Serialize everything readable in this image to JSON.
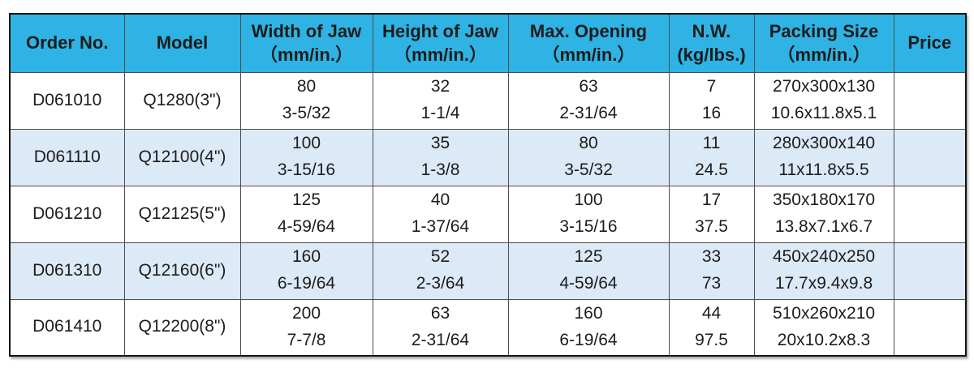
{
  "table": {
    "colors": {
      "header_bg": "#2FB3E4",
      "row_bg": "#FFFFFF",
      "row_alt_bg": "#DCE9F6",
      "border": "#141414",
      "grid": "#4D4D4D"
    },
    "columns": [
      {
        "label": "Order No.",
        "unit": ""
      },
      {
        "label": "Model",
        "unit": ""
      },
      {
        "label": "Width of Jaw",
        "unit": "（mm/in.）"
      },
      {
        "label": "Height of Jaw",
        "unit": "（mm/in.）"
      },
      {
        "label": "Max. Opening",
        "unit": "（mm/in.）"
      },
      {
        "label": "N.W.",
        "unit": "(kg/lbs.)"
      },
      {
        "label": "Packing Size",
        "unit": "（mm/in.）"
      },
      {
        "label": "Price",
        "unit": ""
      }
    ],
    "rows": [
      {
        "order_no": "D061010",
        "model": "Q1280(3\")",
        "width_mm": "80",
        "width_in": "3-5/32",
        "height_mm": "32",
        "height_in": "1-1/4",
        "opening_mm": "63",
        "opening_in": "2-31/64",
        "nw_kg": "7",
        "nw_lbs": "16",
        "packing_mm": "270x300x130",
        "packing_in": "10.6x11.8x5.1",
        "price": ""
      },
      {
        "order_no": "D061110",
        "model": "Q12100(4\")",
        "width_mm": "100",
        "width_in": "3-15/16",
        "height_mm": "35",
        "height_in": "1-3/8",
        "opening_mm": "80",
        "opening_in": "3-5/32",
        "nw_kg": "11",
        "nw_lbs": "24.5",
        "packing_mm": "280x300x140",
        "packing_in": "11x11.8x5.5",
        "price": ""
      },
      {
        "order_no": "D061210",
        "model": "Q12125(5\")",
        "width_mm": "125",
        "width_in": "4-59/64",
        "height_mm": "40",
        "height_in": "1-37/64",
        "opening_mm": "100",
        "opening_in": "3-15/16",
        "nw_kg": "17",
        "nw_lbs": "37.5",
        "packing_mm": "350x180x170",
        "packing_in": "13.8x7.1x6.7",
        "price": ""
      },
      {
        "order_no": "D061310",
        "model": "Q12160(6\")",
        "width_mm": "160",
        "width_in": "6-19/64",
        "height_mm": "52",
        "height_in": "2-3/64",
        "opening_mm": "125",
        "opening_in": "4-59/64",
        "nw_kg": "33",
        "nw_lbs": "73",
        "packing_mm": "450x240x250",
        "packing_in": "17.7x9.4x9.8",
        "price": ""
      },
      {
        "order_no": "D061410",
        "model": "Q12200(8\")",
        "width_mm": "200",
        "width_in": "7-7/8",
        "height_mm": "63",
        "height_in": "2-31/64",
        "opening_mm": "160",
        "opening_in": "6-19/64",
        "nw_kg": "44",
        "nw_lbs": "97.5",
        "packing_mm": "510x260x210",
        "packing_in": "20x10.2x8.3",
        "price": ""
      }
    ]
  }
}
